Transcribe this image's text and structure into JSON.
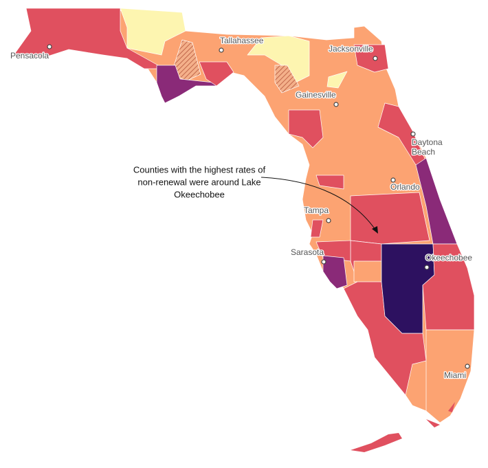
{
  "cities": [
    {
      "lines": [
        "Pensacola"
      ]
    },
    {
      "lines": [
        "Tallahassee"
      ]
    },
    {
      "lines": [
        "Jacksonville"
      ]
    },
    {
      "lines": [
        "Gainesville"
      ]
    },
    {
      "lines": [
        "Daytona",
        "Beach"
      ]
    },
    {
      "lines": [
        "Orlando"
      ]
    },
    {
      "lines": [
        "Tampa"
      ]
    },
    {
      "lines": [
        "Sarasota"
      ]
    },
    {
      "lines": [
        "Okeechobee"
      ]
    },
    {
      "lines": [
        "Miami"
      ]
    }
  ],
  "annotation": {
    "lines": [
      "Counties with the highest rates of",
      "non-renewal were around Lake",
      "Okeechobee"
    ]
  }
}
